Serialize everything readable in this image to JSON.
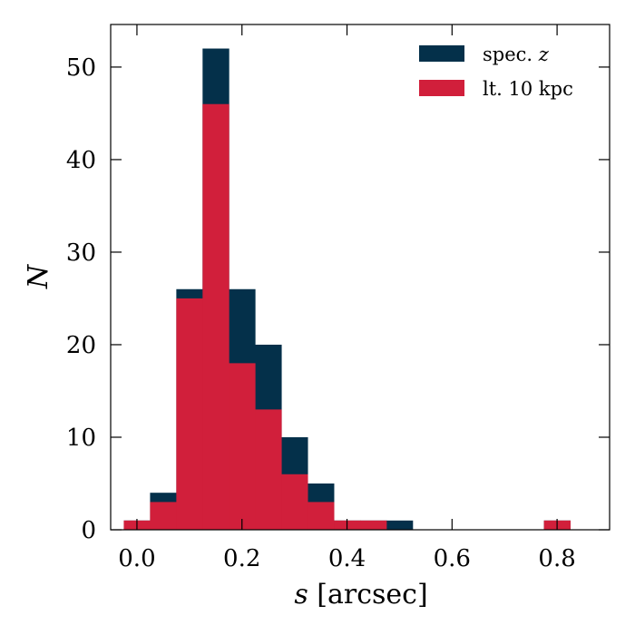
{
  "chart_data": {
    "type": "histogram",
    "xlabel_var": "s",
    "xlabel_unit": " [arcsec]",
    "ylabel": "N",
    "xlim": [
      -0.05,
      0.9
    ],
    "ylim": [
      0,
      54.6
    ],
    "xticks": [
      0.0,
      0.2,
      0.4,
      0.6,
      0.8
    ],
    "xtick_labels": [
      "0.0",
      "0.2",
      "0.4",
      "0.6",
      "0.8"
    ],
    "yticks": [
      0,
      10,
      20,
      30,
      40,
      50
    ],
    "ytick_labels": [
      "0",
      "10",
      "20",
      "30",
      "40",
      "50"
    ],
    "legend_position": "top-right",
    "bin_edges": [
      -0.025,
      0.025,
      0.075,
      0.125,
      0.175,
      0.225,
      0.275,
      0.325,
      0.375,
      0.425,
      0.475,
      0.525,
      0.575,
      0.625,
      0.675,
      0.725,
      0.775,
      0.825
    ],
    "series": [
      {
        "name_text": "spec. ",
        "name_var": "z",
        "color": "#04304a",
        "values": [
          1,
          4,
          26,
          52,
          26,
          20,
          10,
          5,
          1,
          1,
          1,
          0,
          0,
          0,
          0,
          0,
          1
        ]
      },
      {
        "name": "lt. 10 kpc",
        "color": "#d11f3b",
        "values": [
          1,
          3,
          25,
          46,
          18,
          13,
          6,
          3,
          1,
          1,
          0,
          0,
          0,
          0,
          0,
          0,
          1
        ]
      }
    ]
  }
}
